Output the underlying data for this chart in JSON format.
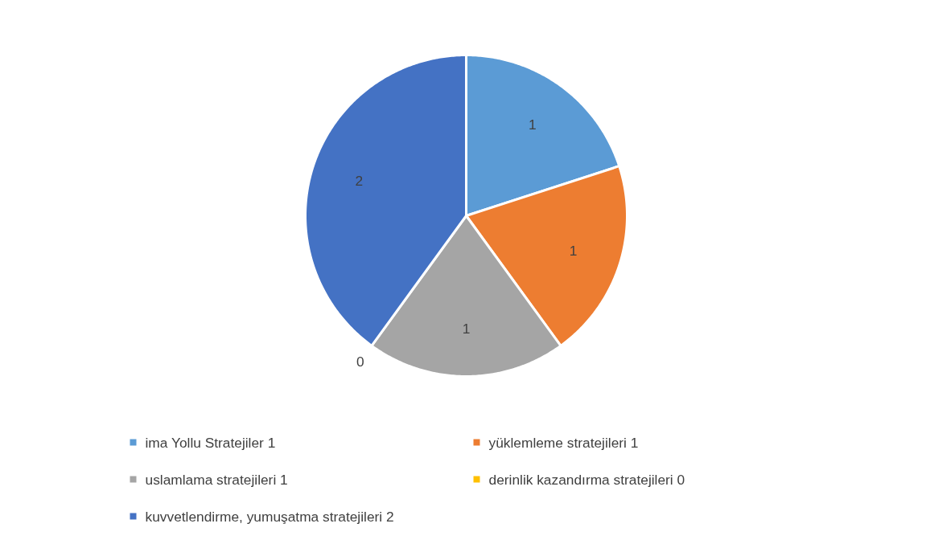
{
  "chart_data": {
    "type": "pie",
    "categories": [
      "ima Yollu Stratejiler 1",
      "yüklemleme stratejileri 1",
      "uslamlama stratejileri 1",
      "derinlik kazandırma stratejileri 0",
      "kuvvetlendirme, yumuşatma stratejileri 2"
    ],
    "values": [
      1,
      1,
      1,
      0,
      2
    ],
    "colors": [
      "#5b9bd5",
      "#ed7d31",
      "#a5a5a5",
      "#ffc000",
      "#4472c4"
    ],
    "value_labels": [
      "1",
      "1",
      "1",
      "0",
      "2"
    ],
    "legend": "bottom"
  }
}
